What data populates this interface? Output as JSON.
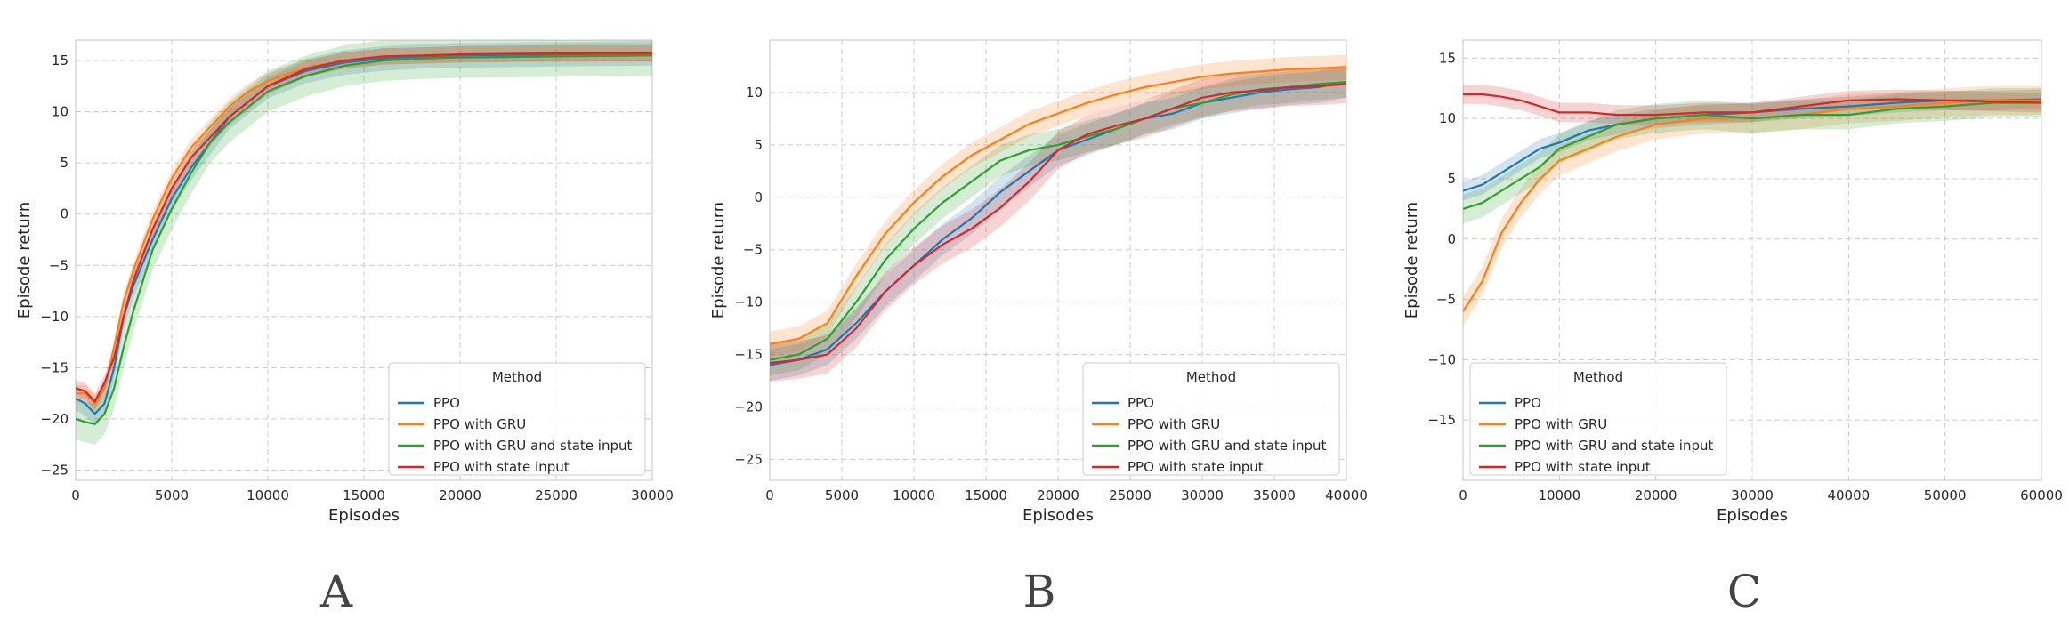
{
  "legend_title": "Method",
  "colors": {
    "PPO": "#1f77b4",
    "PPO with GRU": "#ff7f0e",
    "PPO with GRU and state input": "#2ca02c",
    "PPO with state input": "#d62728"
  },
  "chart_data": [
    {
      "type": "line",
      "panel_label": "A",
      "xlabel": "Episodes",
      "ylabel": "Episode return",
      "xlim": [
        0,
        30000
      ],
      "ylim": [
        -26,
        17
      ],
      "xticks": [
        0,
        5000,
        10000,
        15000,
        20000,
        25000,
        30000
      ],
      "yticks": [
        -25,
        -20,
        -15,
        -10,
        -5,
        0,
        5,
        10,
        15
      ],
      "grid": true,
      "legend_position": "lower-right",
      "x": [
        0,
        500,
        1000,
        1500,
        2000,
        2500,
        3000,
        4000,
        5000,
        6000,
        7000,
        8000,
        9000,
        10000,
        12000,
        14000,
        16000,
        18000,
        20000,
        25000,
        30000
      ],
      "series": [
        {
          "name": "PPO",
          "values": [
            -18,
            -18.5,
            -19.5,
            -18.5,
            -15,
            -10,
            -7,
            -2.5,
            1.5,
            4.5,
            7,
            9.5,
            11,
            12.5,
            14,
            14.8,
            15.2,
            15.4,
            15.5,
            15.6,
            15.7
          ],
          "band": 1.2
        },
        {
          "name": "PPO with GRU",
          "values": [
            -17.5,
            -17.5,
            -18.5,
            -17,
            -13,
            -8.5,
            -5.5,
            -0.5,
            3.5,
            6.5,
            8.5,
            10.5,
            12,
            13,
            14.3,
            15,
            15.4,
            15.5,
            15.6,
            15.7,
            15.7
          ],
          "band": 0.8
        },
        {
          "name": "PPO with GRU and state input",
          "values": [
            -20,
            -20.3,
            -20.5,
            -19.5,
            -17,
            -13,
            -9.5,
            -3.5,
            0.5,
            4,
            7,
            9,
            10.5,
            12,
            13.5,
            14.5,
            15,
            15.2,
            15.3,
            15.4,
            15.5
          ],
          "band": 2.0
        },
        {
          "name": "PPO with state input",
          "values": [
            -17,
            -17.3,
            -18.3,
            -16.5,
            -14,
            -10,
            -6.5,
            -1.5,
            2.5,
            5.5,
            7.5,
            9.5,
            11,
            12.5,
            14.2,
            15,
            15.4,
            15.5,
            15.6,
            15.7,
            15.7
          ],
          "band": 0.8
        }
      ]
    },
    {
      "type": "line",
      "panel_label": "B",
      "xlabel": "Episodes",
      "ylabel": "Episode return",
      "xlim": [
        0,
        40000
      ],
      "ylim": [
        -27,
        15
      ],
      "xticks": [
        0,
        5000,
        10000,
        15000,
        20000,
        25000,
        30000,
        35000,
        40000
      ],
      "yticks": [
        -25,
        -20,
        -15,
        -10,
        -5,
        0,
        5,
        10
      ],
      "grid": true,
      "legend_position": "lower-right",
      "x": [
        0,
        2000,
        4000,
        6000,
        8000,
        10000,
        12000,
        14000,
        16000,
        18000,
        20000,
        22000,
        24000,
        26000,
        28000,
        30000,
        32000,
        34000,
        36000,
        38000,
        40000
      ],
      "series": [
        {
          "name": "PPO",
          "values": [
            -16,
            -15.5,
            -14.5,
            -12,
            -9,
            -6.5,
            -4,
            -2,
            0.5,
            2.5,
            4.5,
            5.5,
            6.5,
            7.5,
            8,
            9,
            9.5,
            10,
            10.3,
            10.5,
            11
          ],
          "band": 1.5
        },
        {
          "name": "PPO with GRU",
          "values": [
            -14,
            -13.5,
            -12,
            -7.5,
            -3.5,
            -0.5,
            2,
            4,
            5.5,
            7,
            8,
            9,
            9.8,
            10.5,
            11,
            11.5,
            11.8,
            12,
            12.2,
            12.3,
            12.4
          ],
          "band": 1.2
        },
        {
          "name": "PPO with GRU and state input",
          "values": [
            -15.5,
            -15,
            -13.5,
            -10,
            -6,
            -3,
            -0.5,
            1.5,
            3.5,
            4.5,
            5,
            5.8,
            6.5,
            7.5,
            8.5,
            9,
            9.8,
            10.3,
            10.5,
            10.8,
            11
          ],
          "band": 1.5
        },
        {
          "name": "PPO with state input",
          "values": [
            -15.8,
            -15.5,
            -15,
            -12.5,
            -9,
            -6.5,
            -4.5,
            -3,
            -1,
            1.5,
            4.5,
            6,
            6.8,
            7.5,
            8.5,
            9.5,
            10,
            10.2,
            10.5,
            10.6,
            10.8
          ],
          "band": 1.8
        }
      ]
    },
    {
      "type": "line",
      "panel_label": "C",
      "xlabel": "Episodes",
      "ylabel": "Episode return",
      "xlim": [
        0,
        60000
      ],
      "ylim": [
        -20,
        16.5
      ],
      "xticks": [
        0,
        10000,
        20000,
        30000,
        40000,
        50000,
        60000
      ],
      "yticks": [
        -15,
        -10,
        -5,
        0,
        5,
        10,
        15
      ],
      "grid": true,
      "legend_position": "lower-left",
      "x": [
        0,
        2000,
        4000,
        6000,
        8000,
        10000,
        13000,
        16000,
        20000,
        25000,
        30000,
        35000,
        40000,
        45000,
        50000,
        55000,
        60000
      ],
      "series": [
        {
          "name": "PPO",
          "values": [
            4,
            4.5,
            5.5,
            6.5,
            7.5,
            8,
            9,
            9.5,
            10,
            10.3,
            10.5,
            10.8,
            11,
            11.3,
            11.5,
            11.5,
            11.6
          ],
          "band": 0.8
        },
        {
          "name": "PPO with GRU",
          "values": [
            -6,
            -3.5,
            0.5,
            3,
            5,
            6.5,
            7.5,
            8.5,
            9.5,
            10,
            10,
            10.3,
            10.8,
            11,
            11.3,
            11.5,
            11.5
          ],
          "band": 1.2
        },
        {
          "name": "PPO with GRU and state input",
          "values": [
            2.5,
            3,
            4,
            5,
            6,
            7.5,
            8.5,
            9.5,
            10,
            10.3,
            10,
            10.3,
            10.3,
            10.8,
            11,
            11.3,
            11.3
          ],
          "band": 1.2
        },
        {
          "name": "PPO with state input",
          "values": [
            12,
            12,
            11.8,
            11.5,
            11,
            10.5,
            10.5,
            10.3,
            10.3,
            10.5,
            10.5,
            11,
            11.5,
            11.6,
            11.5,
            11.4,
            11.3
          ],
          "band": 0.8
        }
      ]
    }
  ]
}
